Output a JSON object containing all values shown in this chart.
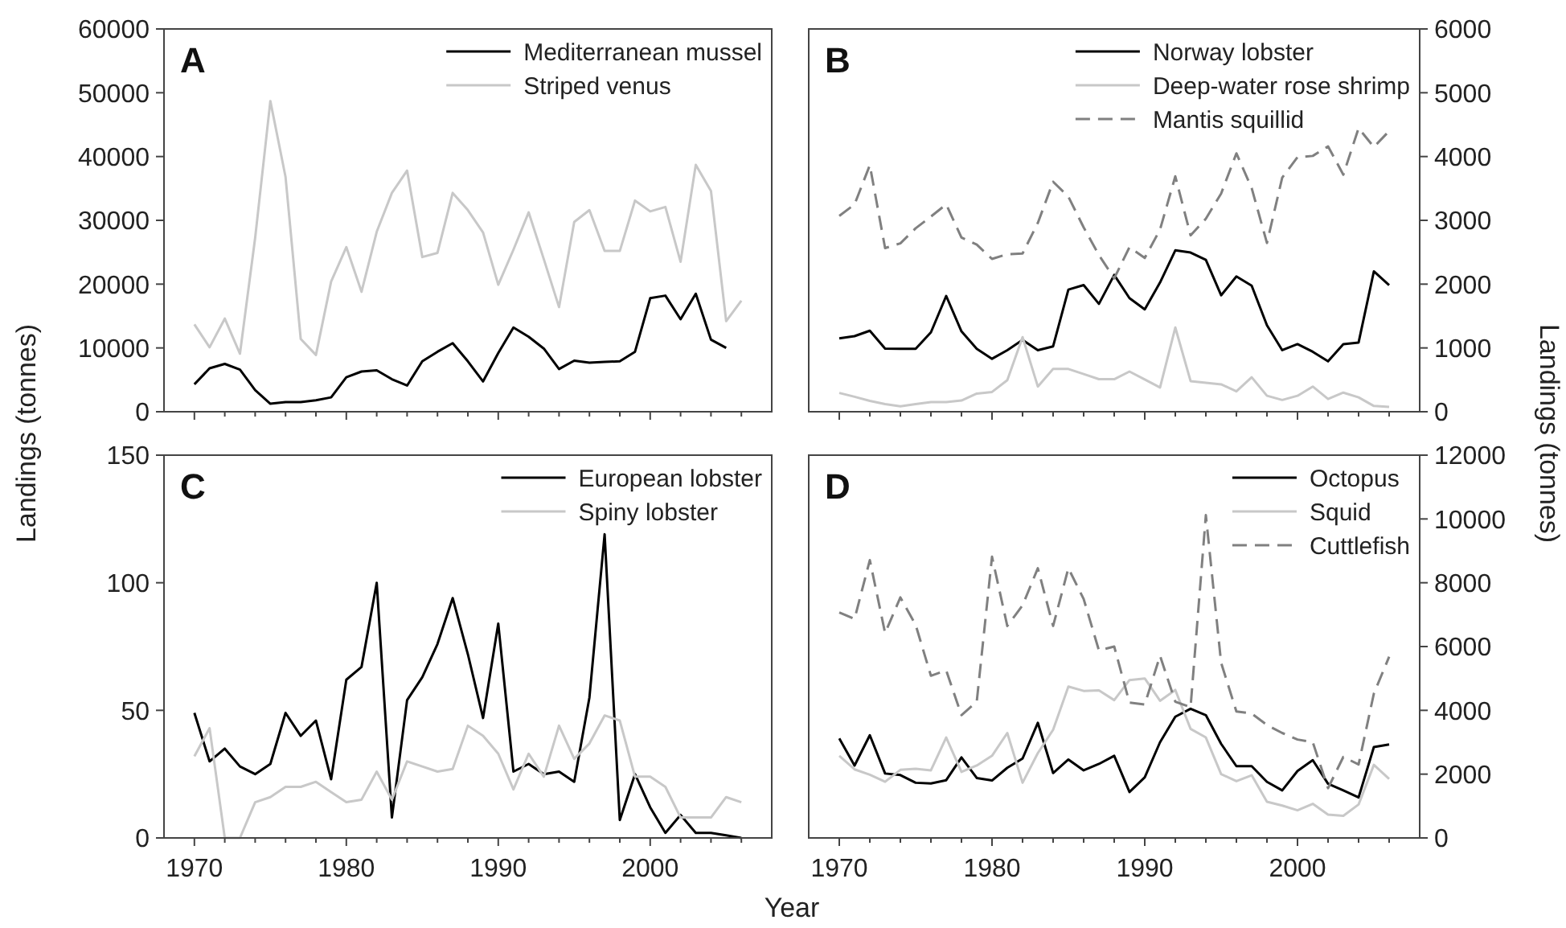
{
  "chart_data": [
    {
      "type": "line",
      "title": "A",
      "ylabel": "Landings (tonnes)",
      "x": [
        1970,
        1971,
        1972,
        1973,
        1974,
        1975,
        1976,
        1977,
        1978,
        1979,
        1980,
        1981,
        1982,
        1983,
        1984,
        1985,
        1986,
        1987,
        1988,
        1989,
        1990,
        1991,
        1992,
        1993,
        1994,
        1995,
        1996,
        1997,
        1998,
        1999,
        2000,
        2001,
        2002,
        2003,
        2004,
        2005,
        2006
      ],
      "xlim": [
        1968,
        2008
      ],
      "xticks": [
        1970,
        {
          "value": 1972,
          "label": null
        },
        {
          "value": 1974,
          "label": null
        },
        {
          "value": 1976,
          "label": null
        },
        {
          "value": 1978,
          "label": null
        },
        1980,
        {
          "value": 1982,
          "label": null
        },
        {
          "value": 1984,
          "label": null
        },
        {
          "value": 1986,
          "label": null
        },
        {
          "value": 1988,
          "label": null
        },
        1990,
        {
          "value": 1992,
          "label": null
        },
        {
          "value": 1994,
          "label": null
        },
        {
          "value": 1996,
          "label": null
        },
        {
          "value": 1998,
          "label": null
        },
        2000,
        {
          "value": 2002,
          "label": null
        },
        {
          "value": 2004,
          "label": null
        },
        {
          "value": 2006,
          "label": null
        }
      ],
      "ylim": [
        0,
        60000
      ],
      "yticks": [
        0,
        10000,
        20000,
        30000,
        40000,
        50000,
        60000
      ],
      "tick_labels": "y",
      "legend": "top right",
      "grid": false,
      "line_style": "solid",
      "series": [
        {
          "name": "Mediterranean mussel",
          "color": "#000000",
          "values": [
            4300,
            6800,
            7500,
            6600,
            3400,
            1250,
            1500,
            1500,
            1800,
            2250,
            5400,
            6300,
            6500,
            5100,
            4100,
            7900,
            9400,
            10750,
            7900,
            4750,
            9200,
            13200,
            11750,
            9900,
            6700,
            8000,
            7700,
            7800,
            7900,
            9400,
            17800,
            18200,
            14500,
            18500,
            11300,
            10000,
            null
          ]
        },
        {
          "name": "Striped venus",
          "color": "#c8c8c8",
          "values": [
            13700,
            10100,
            14600,
            9100,
            27250,
            48700,
            36800,
            11400,
            8900,
            20400,
            25800,
            18800,
            28200,
            34300,
            37800,
            24250,
            24900,
            34300,
            31600,
            28100,
            19900,
            25400,
            31250,
            23900,
            16400,
            29750,
            31600,
            25200,
            25200,
            33100,
            31400,
            32100,
            23500,
            38700,
            34600,
            14200,
            17400
          ]
        }
      ]
    },
    {
      "type": "line",
      "title": "B",
      "y2label": "Landings (tonnes)",
      "x": [
        1970,
        1971,
        1972,
        1973,
        1974,
        1975,
        1976,
        1977,
        1978,
        1979,
        1980,
        1981,
        1982,
        1983,
        1984,
        1985,
        1986,
        1987,
        1988,
        1989,
        1990,
        1991,
        1992,
        1993,
        1994,
        1995,
        1996,
        1997,
        1998,
        1999,
        2000,
        2001,
        2002,
        2003,
        2004,
        2005,
        2006
      ],
      "xlim": [
        1968,
        2008
      ],
      "xticks": [
        1970,
        {
          "value": 1972,
          "label": null
        },
        {
          "value": 1974,
          "label": null
        },
        {
          "value": 1976,
          "label": null
        },
        {
          "value": 1978,
          "label": null
        },
        1980,
        {
          "value": 1982,
          "label": null
        },
        {
          "value": 1984,
          "label": null
        },
        {
          "value": 1986,
          "label": null
        },
        {
          "value": 1988,
          "label": null
        },
        1990,
        {
          "value": 1992,
          "label": null
        },
        {
          "value": 1994,
          "label": null
        },
        {
          "value": 1996,
          "label": null
        },
        {
          "value": 1998,
          "label": null
        },
        2000,
        {
          "value": 2002,
          "label": null
        },
        {
          "value": 2004,
          "label": null
        },
        {
          "value": 2006,
          "label": null
        }
      ],
      "y2lim": [
        0,
        6000
      ],
      "y2ticks": [
        0,
        1000,
        2000,
        3000,
        4000,
        5000,
        6000
      ],
      "tick_labels": "y",
      "legend": "top right",
      "grid": false,
      "series": [
        {
          "name": "Norway lobster",
          "color": "#000000",
          "axis": "y2",
          "line_style": "solid",
          "values": [
            1150,
            1185,
            1270,
            990,
            985,
            985,
            1245,
            1815,
            1260,
            985,
            830,
            965,
            1125,
            965,
            1025,
            1915,
            1985,
            1690,
            2145,
            1780,
            1605,
            2025,
            2530,
            2495,
            2380,
            1825,
            2120,
            1975,
            1355,
            965,
            1060,
            940,
            790,
            1060,
            1085,
            2200,
            1985
          ]
        },
        {
          "name": "Deep-water rose shrimp",
          "color": "#c8c8c8",
          "axis": "y2",
          "line_style": "solid",
          "values": [
            295,
            235,
            170,
            120,
            85,
            120,
            150,
            150,
            175,
            285,
            310,
            495,
            1170,
            395,
            670,
            670,
            590,
            510,
            510,
            630,
            505,
            380,
            1320,
            480,
            455,
            430,
            320,
            540,
            250,
            185,
            250,
            395,
            200,
            300,
            225,
            90,
            75
          ]
        },
        {
          "name": "Mantis squillid",
          "color": "#808080",
          "axis": "y2",
          "line_style": "dashed",
          "values": [
            3070,
            3250,
            3865,
            2565,
            2640,
            2875,
            3060,
            3250,
            2730,
            2620,
            2395,
            2470,
            2480,
            2960,
            3605,
            3370,
            2890,
            2455,
            2090,
            2580,
            2410,
            2855,
            3690,
            2765,
            3025,
            3420,
            4050,
            3505,
            2645,
            3670,
            3990,
            4010,
            4160,
            3715,
            4445,
            4150,
            4400
          ]
        }
      ]
    },
    {
      "type": "line",
      "title": "C",
      "x": [
        1970,
        1971,
        1972,
        1973,
        1974,
        1975,
        1976,
        1977,
        1978,
        1979,
        1980,
        1981,
        1982,
        1983,
        1984,
        1985,
        1986,
        1987,
        1988,
        1989,
        1990,
        1991,
        1992,
        1993,
        1994,
        1995,
        1996,
        1997,
        1998,
        1999,
        2000,
        2001,
        2002,
        2003,
        2004,
        2005,
        2006
      ],
      "xlim": [
        1968,
        2008
      ],
      "xticks": [
        1970,
        {
          "value": 1972,
          "label": null
        },
        {
          "value": 1974,
          "label": null
        },
        {
          "value": 1976,
          "label": null
        },
        {
          "value": 1978,
          "label": null
        },
        1980,
        {
          "value": 1982,
          "label": null
        },
        {
          "value": 1984,
          "label": null
        },
        {
          "value": 1986,
          "label": null
        },
        {
          "value": 1988,
          "label": null
        },
        1990,
        {
          "value": 1992,
          "label": null
        },
        {
          "value": 1994,
          "label": null
        },
        {
          "value": 1996,
          "label": null
        },
        {
          "value": 1998,
          "label": null
        },
        2000,
        {
          "value": 2002,
          "label": null
        },
        {
          "value": 2004,
          "label": null
        },
        {
          "value": 2006,
          "label": null
        }
      ],
      "ylim": [
        0,
        150
      ],
      "yticks": [
        0,
        50,
        100,
        150
      ],
      "legend": "top right",
      "grid": false,
      "line_style": "solid",
      "series": [
        {
          "name": "European lobster",
          "color": "#000000",
          "values": [
            49,
            30,
            35,
            28,
            25,
            29,
            49,
            40,
            46,
            23,
            62,
            67,
            100,
            8,
            54,
            63,
            76,
            94,
            72,
            47,
            84,
            26,
            29,
            25,
            26,
            22,
            55,
            119,
            7,
            25,
            12,
            2,
            9,
            2,
            2,
            1,
            0
          ]
        },
        {
          "name": "Spiny lobster",
          "color": "#c8c8c8",
          "values": [
            32,
            43,
            0,
            0,
            14,
            16,
            20,
            20,
            22,
            18,
            14,
            15,
            26,
            15,
            30,
            28,
            26,
            27,
            44,
            40,
            33,
            19,
            33,
            24,
            44,
            31,
            37,
            48,
            46,
            24,
            24,
            20,
            8,
            8,
            8,
            16,
            14
          ]
        }
      ]
    },
    {
      "type": "line",
      "title": "D",
      "xlabel": "Year",
      "x": [
        1970,
        1971,
        1972,
        1973,
        1974,
        1975,
        1976,
        1977,
        1978,
        1979,
        1980,
        1981,
        1982,
        1983,
        1984,
        1985,
        1986,
        1987,
        1988,
        1989,
        1990,
        1991,
        1992,
        1993,
        1994,
        1995,
        1996,
        1997,
        1998,
        1999,
        2000,
        2001,
        2002,
        2003,
        2004,
        2005,
        2006
      ],
      "xlim": [
        1968,
        2008
      ],
      "xticks": [
        1970,
        {
          "value": 1972,
          "label": null
        },
        {
          "value": 1974,
          "label": null
        },
        {
          "value": 1976,
          "label": null
        },
        {
          "value": 1978,
          "label": null
        },
        1980,
        {
          "value": 1982,
          "label": null
        },
        {
          "value": 1984,
          "label": null
        },
        {
          "value": 1986,
          "label": null
        },
        {
          "value": 1988,
          "label": null
        },
        1990,
        {
          "value": 1992,
          "label": null
        },
        {
          "value": 1994,
          "label": null
        },
        {
          "value": 1996,
          "label": null
        },
        {
          "value": 1998,
          "label": null
        },
        2000,
        {
          "value": 2002,
          "label": null
        },
        {
          "value": 2004,
          "label": null
        },
        {
          "value": 2006,
          "label": null
        }
      ],
      "y2lim": [
        0,
        12000
      ],
      "y2ticks": [
        0,
        2000,
        4000,
        6000,
        8000,
        10000,
        12000
      ],
      "legend": "top right",
      "grid": false,
      "series": [
        {
          "name": "Octopus",
          "color": "#000000",
          "axis": "y2",
          "line_style": "solid",
          "values": [
            3120,
            2270,
            3220,
            2020,
            1970,
            1730,
            1710,
            1810,
            2525,
            1880,
            1800,
            2200,
            2490,
            3610,
            2035,
            2460,
            2120,
            2320,
            2575,
            1440,
            1900,
            3000,
            3800,
            4050,
            3850,
            2950,
            2250,
            2250,
            1760,
            1490,
            2100,
            2440,
            1700,
            1490,
            1270,
            2850,
            2930
          ]
        },
        {
          "name": "Squid",
          "color": "#c8c8c8",
          "axis": "y2",
          "line_style": "solid",
          "values": [
            2575,
            2150,
            1980,
            1760,
            2135,
            2170,
            2120,
            3150,
            2070,
            2270,
            2575,
            3290,
            1730,
            2660,
            3390,
            4745,
            4610,
            4625,
            4320,
            4950,
            5000,
            4300,
            4640,
            3420,
            3150,
            2000,
            1780,
            1965,
            1135,
            1015,
            865,
            1070,
            730,
            695,
            1050,
            2290,
            1850
          ]
        },
        {
          "name": "Cuttlefish",
          "color": "#808080",
          "axis": "y2",
          "line_style": "dashed",
          "values": [
            7070,
            6865,
            8710,
            6425,
            7540,
            6680,
            5085,
            5255,
            3850,
            4270,
            8815,
            6645,
            7290,
            8455,
            6645,
            8455,
            7490,
            5880,
            6000,
            4240,
            4185,
            5710,
            4270,
            4100,
            10120,
            5490,
            3965,
            3900,
            3540,
            3290,
            3085,
            3000,
            1560,
            2540,
            2305,
            4525,
            5680
          ]
        }
      ]
    }
  ]
}
